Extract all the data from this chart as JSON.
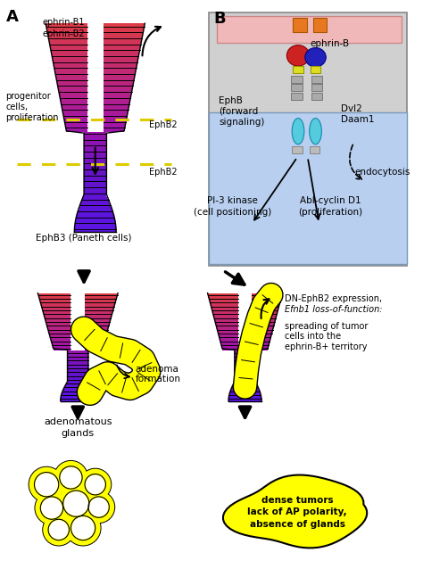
{
  "panel_A_label": "A",
  "panel_B_label": "B",
  "ephrin_B1_B2_text": "ephrin-B1\nephrin-B2",
  "EphB2_text_upper": "EphB2",
  "EphB2_text_lower": "EphB2",
  "EphB3_text": "EphB3 (Paneth cells)",
  "progenitor_text": "progenitor\ncells,\nproliferation",
  "ephrin_B_text": "ephrin-B",
  "EphB_text": "EphB\n(forward\nsignaling)",
  "Dvl2_text": "Dvl2\nDaam1",
  "endocytosis_text": "endocytosis",
  "PI3_text": "PI-3 kinase\n(cell positioning)",
  "Abl_text": "Abl-cyclin D1\n(proliferation)",
  "adenoma_text": "adenoma\nformation",
  "adenomatous_text": "adenomatous\nglands",
  "DN_line1": "DN-EphB2 expression,",
  "DN_line2": "Efnb1 loss-of-function:",
  "DN_line3": "spreading of tumor",
  "DN_line4": "cells into the",
  "DN_line5": "ephrin-B+ territory",
  "dense_text": "dense tumors\nlack of AP polarity,\nabsence of glands",
  "color_red": "#E05050",
  "color_blue": "#4444BB",
  "color_yellow": "#FFFF00",
  "color_light_pink_bg": "#F0B8B8",
  "color_light_blue_bg": "#B8CFF0",
  "color_gray_bg": "#D0D0D0",
  "color_cyan": "#55CCDD",
  "color_orange": "#E87820",
  "color_dark_blue_blob": "#3333AA",
  "fig_w": 4.74,
  "fig_h": 6.38,
  "dpi": 100
}
